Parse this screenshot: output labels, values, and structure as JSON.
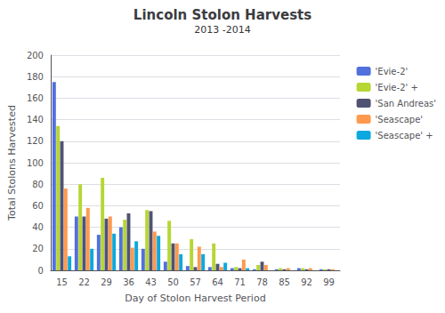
{
  "chart_data": {
    "type": "bar",
    "title": "Lincoln Stolon Harvests",
    "subtitle": "2013 -2014",
    "xlabel": "Day of Stolon Harvest Period",
    "ylabel": "Total Stolons Harvested",
    "categories": [
      15,
      22,
      29,
      36,
      43,
      50,
      57,
      64,
      71,
      78,
      85,
      92,
      99
    ],
    "series": [
      {
        "name": "'Evie-2'",
        "values": [
          175,
          50,
          33,
          40,
          20,
          8,
          4,
          3,
          2,
          1,
          1,
          2,
          1
        ]
      },
      {
        "name": "'Evie-2' +",
        "values": [
          134,
          80,
          86,
          47,
          56,
          46,
          29,
          25,
          3,
          5,
          2,
          2,
          1
        ]
      },
      {
        "name": "'San Andreas'",
        "values": [
          120,
          50,
          48,
          53,
          55,
          25,
          3,
          6,
          2,
          8,
          1,
          1,
          1
        ]
      },
      {
        "name": "'Seascape'",
        "values": [
          76,
          58,
          50,
          21,
          36,
          25,
          22,
          3,
          10,
          5,
          2,
          2,
          1
        ]
      },
      {
        "name": "'Seascape' +",
        "values": [
          13,
          20,
          34,
          27,
          32,
          15,
          15,
          7,
          2,
          0,
          0,
          0,
          0
        ]
      }
    ],
    "ylim": [
      0,
      200
    ],
    "yticks": [
      0,
      20,
      40,
      60,
      80,
      100,
      120,
      140,
      160,
      180,
      200
    ],
    "grid": true,
    "legend": "right"
  }
}
